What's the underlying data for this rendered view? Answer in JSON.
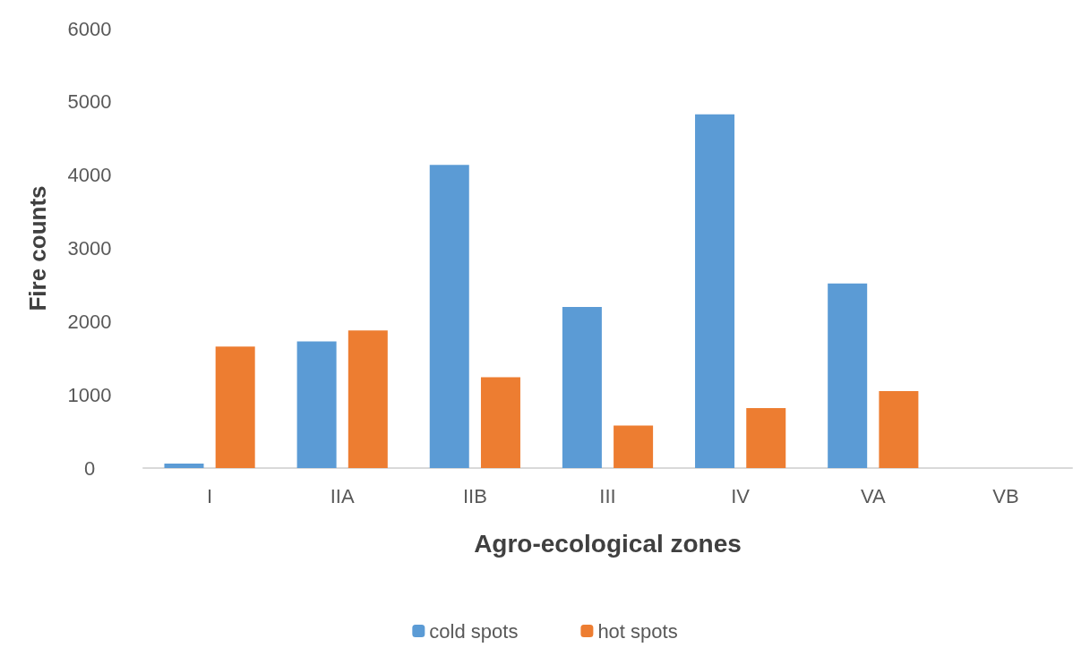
{
  "chart_data": {
    "type": "bar",
    "xlabel": "Agro-ecological zones",
    "ylabel": "Fire counts",
    "categories": [
      "I",
      "IIA",
      "IIB",
      "III",
      "IV",
      "VA",
      "VB"
    ],
    "series": [
      {
        "name": "cold spots",
        "color": "#5b9bd5",
        "values": [
          60,
          1730,
          4140,
          2200,
          4830,
          2520,
          0
        ]
      },
      {
        "name": "hot spots",
        "color": "#ed7d31",
        "values": [
          1660,
          1880,
          1240,
          580,
          820,
          1050,
          0
        ]
      }
    ],
    "ylim": [
      0,
      6000
    ],
    "yticks": [
      0,
      1000,
      2000,
      3000,
      4000,
      5000,
      6000
    ],
    "grid": false,
    "legend": "bottom"
  }
}
